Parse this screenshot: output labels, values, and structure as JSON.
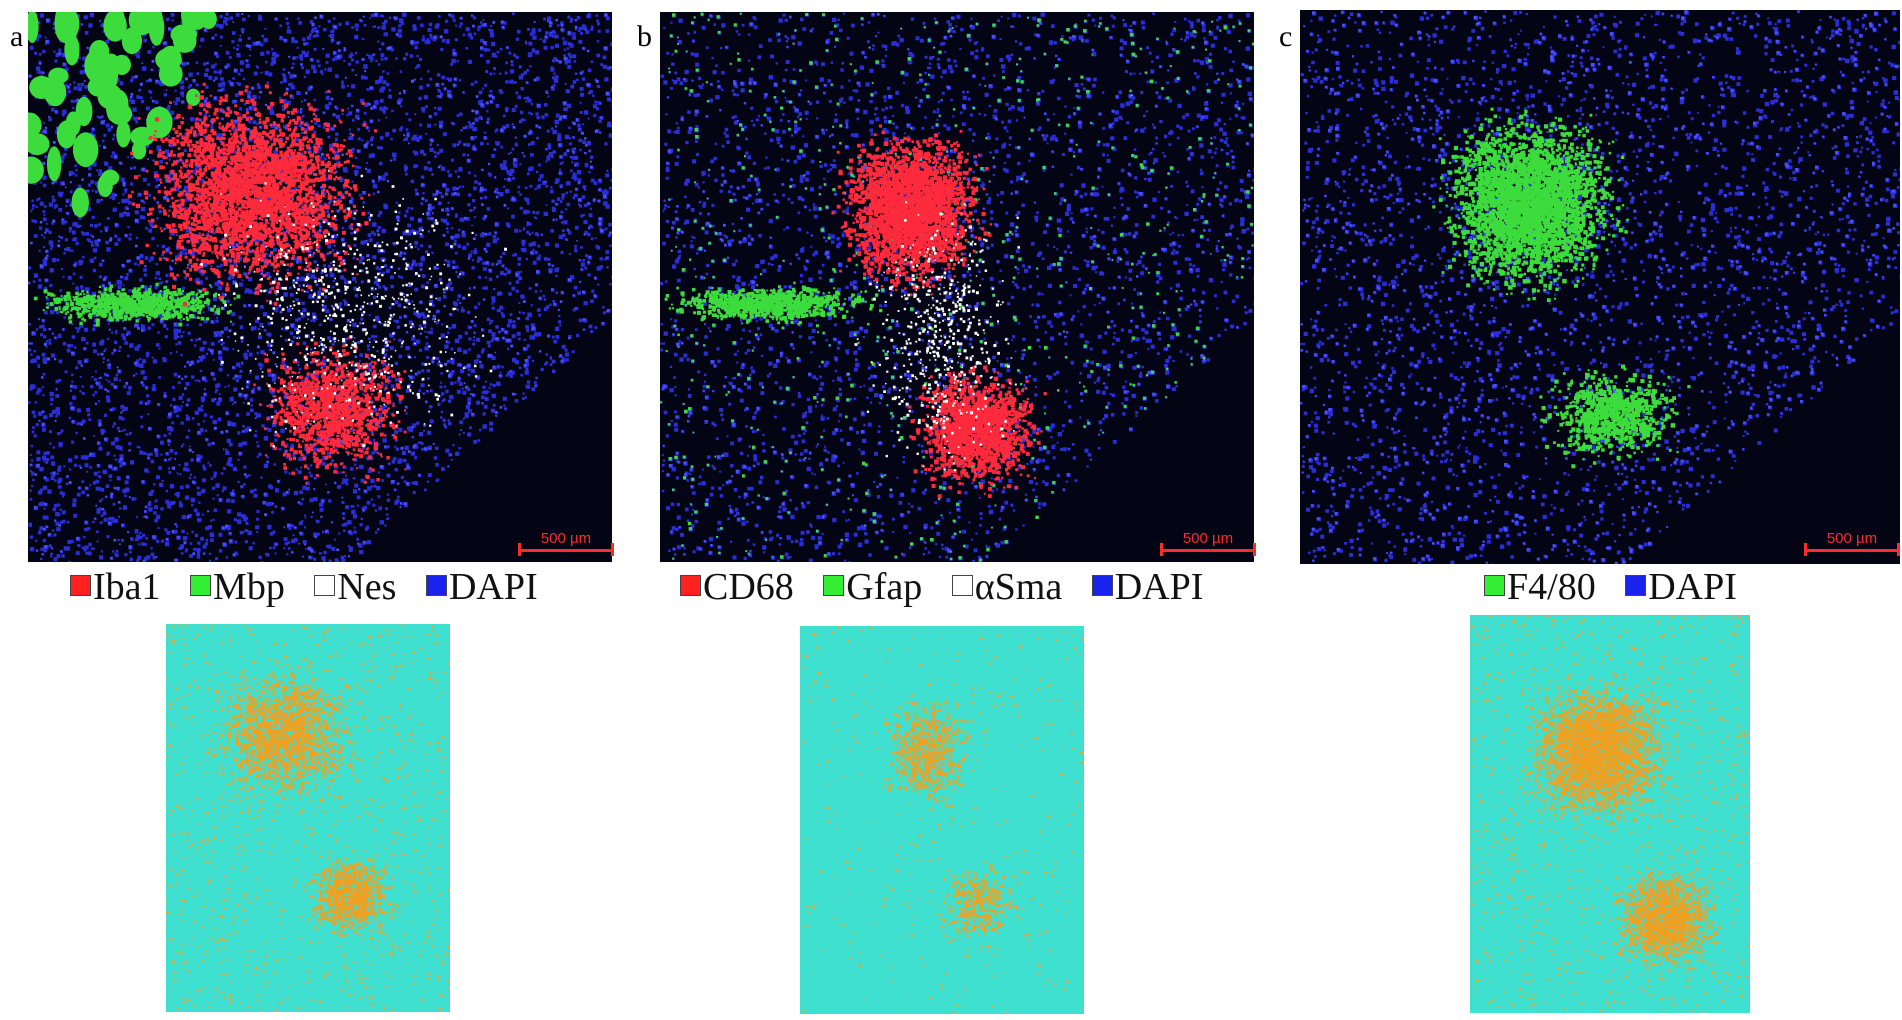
{
  "panels": [
    {
      "letter": "a",
      "scalebar": "500 µm",
      "legend": [
        {
          "color": "#ff2020",
          "label": "Iba1"
        },
        {
          "color": "#33ee33",
          "label": "Mbp"
        },
        {
          "color": "#ffffff",
          "label": "Nes"
        },
        {
          "color": "#1a22ee",
          "label": "DAPI"
        }
      ]
    },
    {
      "letter": "b",
      "scalebar": "500 µm",
      "legend": [
        {
          "color": "#ff2020",
          "label": "CD68"
        },
        {
          "color": "#33ee33",
          "label": "Gfap"
        },
        {
          "color": "#ffffff",
          "label": "αSma"
        },
        {
          "color": "#1a22ee",
          "label": "DAPI"
        }
      ]
    },
    {
      "letter": "c",
      "scalebar": "500 µm",
      "legend": [
        {
          "color": "#33ee33",
          "label": "F4/80"
        },
        {
          "color": "#1a22ee",
          "label": "DAPI"
        }
      ]
    }
  ],
  "colors": {
    "background": "#030414",
    "nuclei": "#2a2ed8",
    "signal_red": "#ff2a3c",
    "signal_green": "#3ddc3d",
    "signal_white": "#ffffff",
    "heatmap_background": "#40e0d0",
    "heatmap_dots": "#f0a020"
  }
}
